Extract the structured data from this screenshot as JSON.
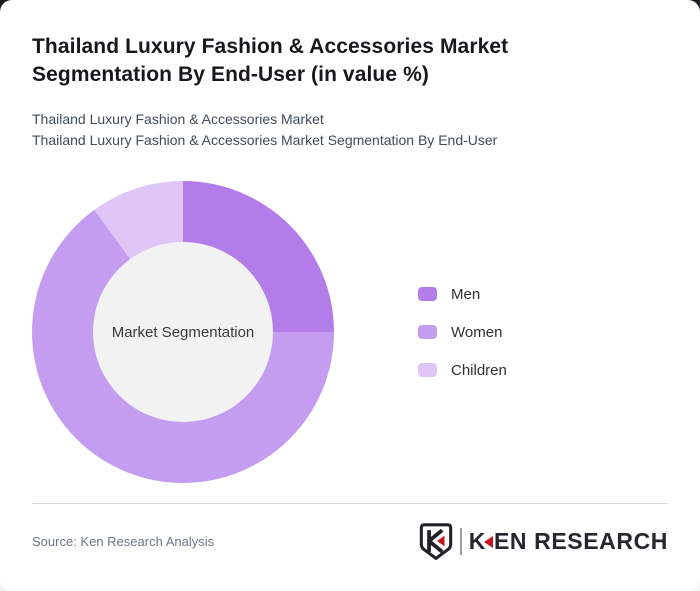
{
  "page": {
    "card_background": "#ffffff",
    "outside_top_color": "#1a1a1e",
    "outside_bottom_color": "#f5f5f7"
  },
  "header": {
    "title": "Thailand Luxury Fashion & Accessories Market Segmentation By End-User (in value %)",
    "subtitle_line1": "Thailand Luxury Fashion & Accessories Market",
    "subtitle_line2": "Thailand Luxury Fashion & Accessories Market Segmentation By End-User"
  },
  "chart_data": {
    "type": "pie",
    "subtype": "donut",
    "title": "Thailand Luxury Fashion & Accessories Market Segmentation By End-User (in value %)",
    "center_label": "Market Segmentation",
    "categories": [
      "Men",
      "Women",
      "Children"
    ],
    "values": [
      25,
      65,
      10
    ],
    "unit": "value %",
    "segments": [
      {
        "label": "Men",
        "value": 25,
        "color": "#b27de8"
      },
      {
        "label": "Women",
        "value": 65,
        "color": "#c59df0"
      },
      {
        "label": "Children",
        "value": 10,
        "color": "#dfc6f7"
      }
    ],
    "start_angle_deg": 0,
    "direction": "clockwise",
    "cutout_ratio": 0.6,
    "hole_color": "#f2f2f2",
    "legend_position": "right",
    "data_labels_shown": false
  },
  "footer": {
    "source": "Source: Ken Research Analysis",
    "logo_text": "KEN RESEARCH"
  }
}
